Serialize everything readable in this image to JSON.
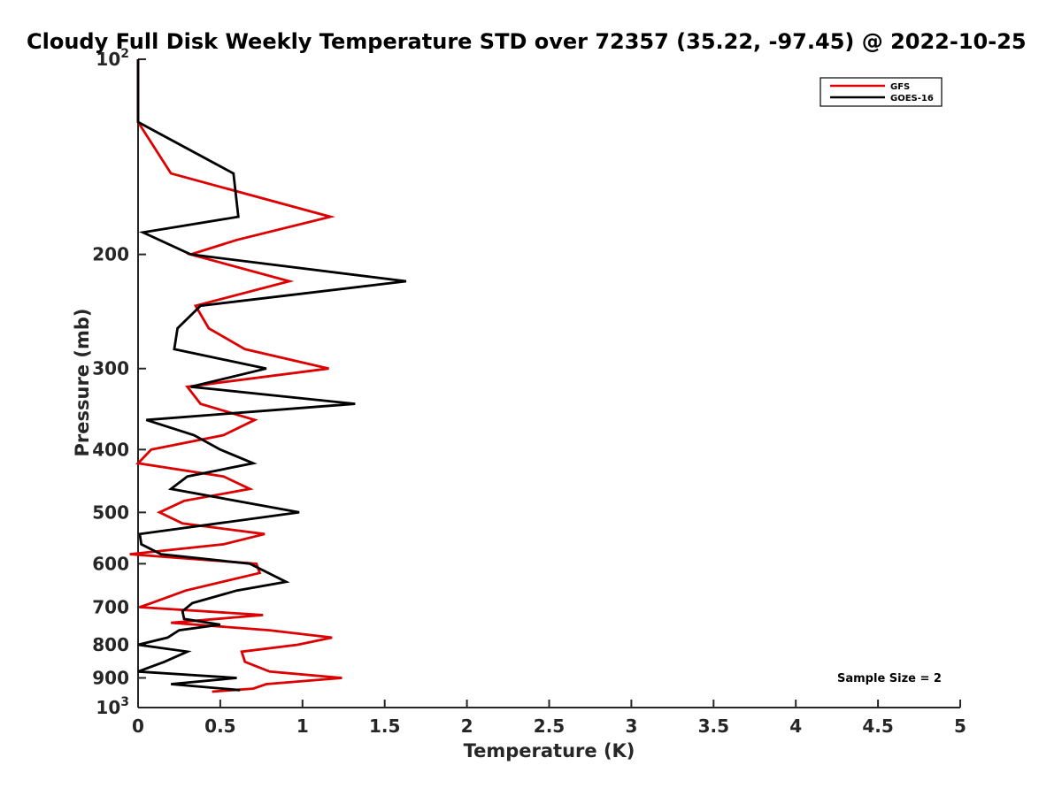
{
  "chart_data": {
    "type": "line",
    "title": "Cloudy Full Disk Weekly Temperature STD over 72357 (35.22, -97.45) @ 2022-10-25",
    "xlabel": "Temperature (K)",
    "ylabel": "Pressure (mb)",
    "xlim": [
      0,
      5
    ],
    "ylim": [
      100,
      1000
    ],
    "y_scale": "log",
    "y_reversed": true,
    "grid": false,
    "legend_position": "top-right",
    "x_ticks": [
      0,
      0.5,
      1,
      1.5,
      2,
      2.5,
      3,
      3.5,
      4,
      4.5,
      5
    ],
    "x_tick_labels": [
      "0",
      "0.5",
      "1",
      "1.5",
      "2",
      "2.5",
      "3",
      "3.5",
      "4",
      "4.5",
      "5"
    ],
    "y_ticks": [
      100,
      200,
      300,
      400,
      500,
      600,
      700,
      800,
      900,
      1000
    ],
    "y_tick_labels": [
      {
        "base": "10",
        "exp": "2"
      },
      {
        "base": "200",
        "exp": ""
      },
      {
        "base": "300",
        "exp": ""
      },
      {
        "base": "400",
        "exp": ""
      },
      {
        "base": "500",
        "exp": ""
      },
      {
        "base": "600",
        "exp": ""
      },
      {
        "base": "700",
        "exp": ""
      },
      {
        "base": "800",
        "exp": ""
      },
      {
        "base": "900",
        "exp": ""
      },
      {
        "base": "10",
        "exp": "3"
      }
    ],
    "annotation": "Sample Size = 2",
    "series": [
      {
        "name": "GFS",
        "color": "#dd0000",
        "points": [
          [
            0,
            100
          ],
          [
            0,
            125
          ],
          [
            0.2,
            150
          ],
          [
            1.17,
            175
          ],
          [
            0.6,
            190
          ],
          [
            0.32,
            200
          ],
          [
            0.92,
            220
          ],
          [
            0.35,
            240
          ],
          [
            0.43,
            260
          ],
          [
            0.65,
            280
          ],
          [
            1.16,
            300
          ],
          [
            0.3,
            320
          ],
          [
            0.38,
            340
          ],
          [
            0.71,
            360
          ],
          [
            0.52,
            380
          ],
          [
            0.08,
            400
          ],
          [
            0,
            420
          ],
          [
            0.52,
            440
          ],
          [
            0.68,
            460
          ],
          [
            0.28,
            480
          ],
          [
            0.13,
            500
          ],
          [
            0.27,
            520
          ],
          [
            0.77,
            540
          ],
          [
            0.52,
            560
          ],
          [
            -0.05,
            580
          ],
          [
            0.72,
            600
          ],
          [
            0.74,
            620
          ],
          [
            0.29,
            660
          ],
          [
            0.08,
            690
          ],
          [
            0.01,
            700
          ],
          [
            0.76,
            720
          ],
          [
            0.2,
            740
          ],
          [
            0.8,
            760
          ],
          [
            1.18,
            780
          ],
          [
            0.97,
            800
          ],
          [
            0.63,
            820
          ],
          [
            0.65,
            850
          ],
          [
            0.8,
            880
          ],
          [
            1.24,
            900
          ],
          [
            0.78,
            920
          ],
          [
            0.7,
            935
          ],
          [
            0.45,
            945
          ]
        ]
      },
      {
        "name": "GOES-16",
        "color": "#000000",
        "points": [
          [
            0,
            100
          ],
          [
            0,
            125
          ],
          [
            0.58,
            150
          ],
          [
            0.61,
            175
          ],
          [
            0.03,
            185
          ],
          [
            0.32,
            200
          ],
          [
            1.63,
            220
          ],
          [
            0.38,
            240
          ],
          [
            0.24,
            260
          ],
          [
            0.22,
            280
          ],
          [
            0.78,
            300
          ],
          [
            0.32,
            320
          ],
          [
            1.32,
            340
          ],
          [
            0.05,
            360
          ],
          [
            0.34,
            380
          ],
          [
            0.5,
            400
          ],
          [
            0.7,
            420
          ],
          [
            0.3,
            440
          ],
          [
            0.2,
            460
          ],
          [
            0.98,
            500
          ],
          [
            0.01,
            540
          ],
          [
            0.02,
            560
          ],
          [
            0.14,
            580
          ],
          [
            0.68,
            600
          ],
          [
            0.9,
            640
          ],
          [
            0.6,
            660
          ],
          [
            0.33,
            690
          ],
          [
            0.27,
            710
          ],
          [
            0.28,
            730
          ],
          [
            0.5,
            745
          ],
          [
            0.25,
            760
          ],
          [
            0.18,
            780
          ],
          [
            0.0,
            800
          ],
          [
            0.3,
            820
          ],
          [
            0.16,
            850
          ],
          [
            0.0,
            880
          ],
          [
            0.6,
            900
          ],
          [
            0.2,
            920
          ],
          [
            0.62,
            940
          ]
        ]
      }
    ]
  }
}
